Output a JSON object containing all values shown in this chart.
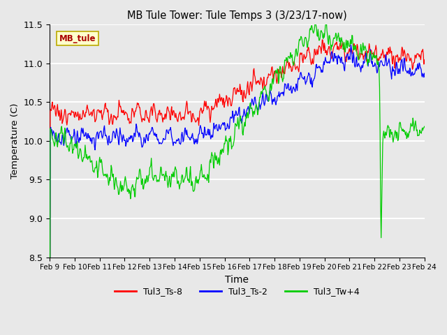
{
  "title": "MB Tule Tower: Tule Temps 3 (3/23/17-now)",
  "xlabel": "Time",
  "ylabel": "Temperature (C)",
  "ylim": [
    8.5,
    11.5
  ],
  "xlim": [
    0,
    15
  ],
  "plot_bg_color": "#e8e8e8",
  "xtick_labels": [
    "Feb 9",
    "Feb 10",
    "Feb 11",
    "Feb 12",
    "Feb 13",
    "Feb 14",
    "Feb 15",
    "Feb 16",
    "Feb 17",
    "Feb 18",
    "Feb 19",
    "Feb 20",
    "Feb 21",
    "Feb 22",
    "Feb 23",
    "Feb 24"
  ],
  "legend_label_box": "MB_tule",
  "series": {
    "Tul3_Ts-8": {
      "color": "#ff0000"
    },
    "Tul3_Ts-2": {
      "color": "#0000ff"
    },
    "Tul3_Tw+4": {
      "color": "#00cc00"
    }
  },
  "ytick_values": [
    8.5,
    9.0,
    9.5,
    10.0,
    10.5,
    11.0,
    11.5
  ],
  "ytick_labels": [
    "8.5",
    "9.0",
    "9.5",
    "10.0",
    "10.5",
    "11.0",
    "11.5"
  ],
  "figsize": [
    6.4,
    4.8
  ],
  "dpi": 100
}
